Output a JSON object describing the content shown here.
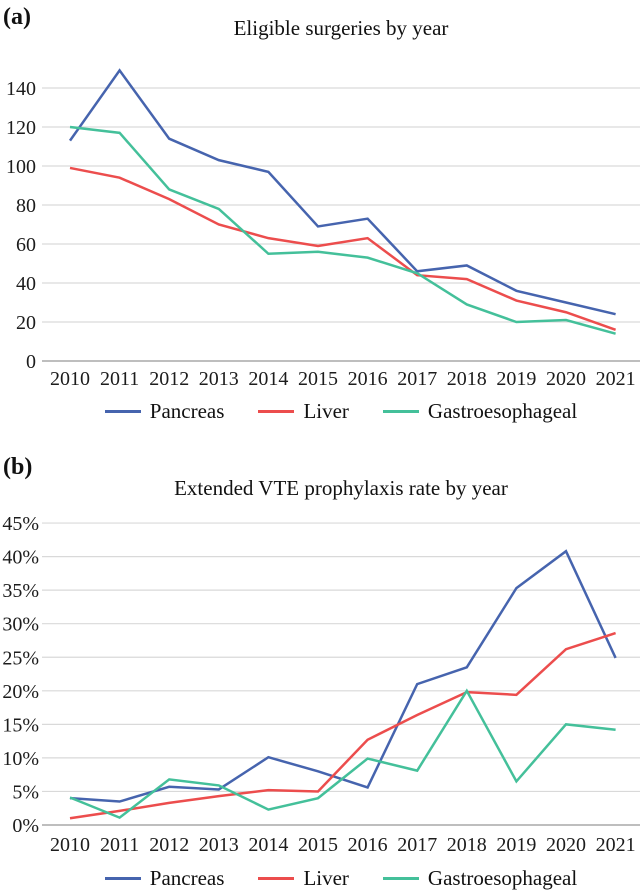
{
  "chart_data": [
    {
      "type": "line",
      "panel": "(a)",
      "title": "Eligible surgeries by year",
      "xlabel": "",
      "ylabel": "",
      "categories": [
        "2010",
        "2011",
        "2012",
        "2013",
        "2014",
        "2015",
        "2016",
        "2017",
        "2018",
        "2019",
        "2020",
        "2021"
      ],
      "ylim": [
        0,
        150
      ],
      "grid": true,
      "legend_position": "bottom",
      "yticks": [
        {
          "v": 0,
          "label": "0"
        },
        {
          "v": 20,
          "label": "20"
        },
        {
          "v": 40,
          "label": "40"
        },
        {
          "v": 60,
          "label": "60"
        },
        {
          "v": 80,
          "label": "80"
        },
        {
          "v": 100,
          "label": "100"
        },
        {
          "v": 120,
          "label": "120"
        },
        {
          "v": 140,
          "label": "140"
        }
      ],
      "series": [
        {
          "name": "Pancreas",
          "color": "#4664ae",
          "values": [
            113,
            149,
            114,
            103,
            97,
            69,
            73,
            46,
            49,
            36,
            30,
            24
          ]
        },
        {
          "name": "Liver",
          "color": "#ec4d4d",
          "values": [
            99,
            94,
            83,
            70,
            63,
            59,
            63,
            44,
            42,
            31,
            25,
            16
          ]
        },
        {
          "name": "Gastroesophageal",
          "color": "#44c09a",
          "values": [
            120,
            117,
            88,
            78,
            55,
            56,
            53,
            45,
            29,
            20,
            21,
            14
          ]
        }
      ]
    },
    {
      "type": "line",
      "panel": "(b)",
      "title": "Extended VTE prophylaxis rate by year",
      "xlabel": "",
      "ylabel": "",
      "categories": [
        "2010",
        "2011",
        "2012",
        "2013",
        "2014",
        "2015",
        "2016",
        "2017",
        "2018",
        "2019",
        "2020",
        "2021"
      ],
      "ylim": [
        0,
        45
      ],
      "grid": true,
      "legend_position": "bottom",
      "yticks": [
        {
          "v": 0,
          "label": "0%"
        },
        {
          "v": 5,
          "label": "5%"
        },
        {
          "v": 10,
          "label": "10%"
        },
        {
          "v": 15,
          "label": "15%"
        },
        {
          "v": 20,
          "label": "20%"
        },
        {
          "v": 25,
          "label": "25%"
        },
        {
          "v": 30,
          "label": "30%"
        },
        {
          "v": 35,
          "label": "35%"
        },
        {
          "v": 40,
          "label": "40%"
        },
        {
          "v": 45,
          "label": "45%"
        }
      ],
      "series": [
        {
          "name": "Pancreas",
          "color": "#4664ae",
          "values": [
            4.0,
            3.5,
            5.7,
            5.3,
            10.1,
            8.0,
            5.6,
            21.0,
            23.5,
            35.3,
            40.8,
            24.9
          ]
        },
        {
          "name": "Liver",
          "color": "#ec4d4d",
          "values": [
            1.0,
            2.1,
            3.3,
            4.3,
            5.2,
            5.0,
            12.7,
            16.4,
            19.8,
            19.4,
            26.2,
            28.6
          ]
        },
        {
          "name": "Gastroesophageal",
          "color": "#44c09a",
          "values": [
            4.1,
            1.1,
            6.8,
            5.9,
            2.3,
            4.0,
            9.9,
            8.1,
            20.0,
            6.5,
            15.0,
            14.2
          ]
        }
      ]
    }
  ],
  "axis_colors": {
    "gridline": "#d9d9d9",
    "axis_line": "#a9a9a9"
  }
}
